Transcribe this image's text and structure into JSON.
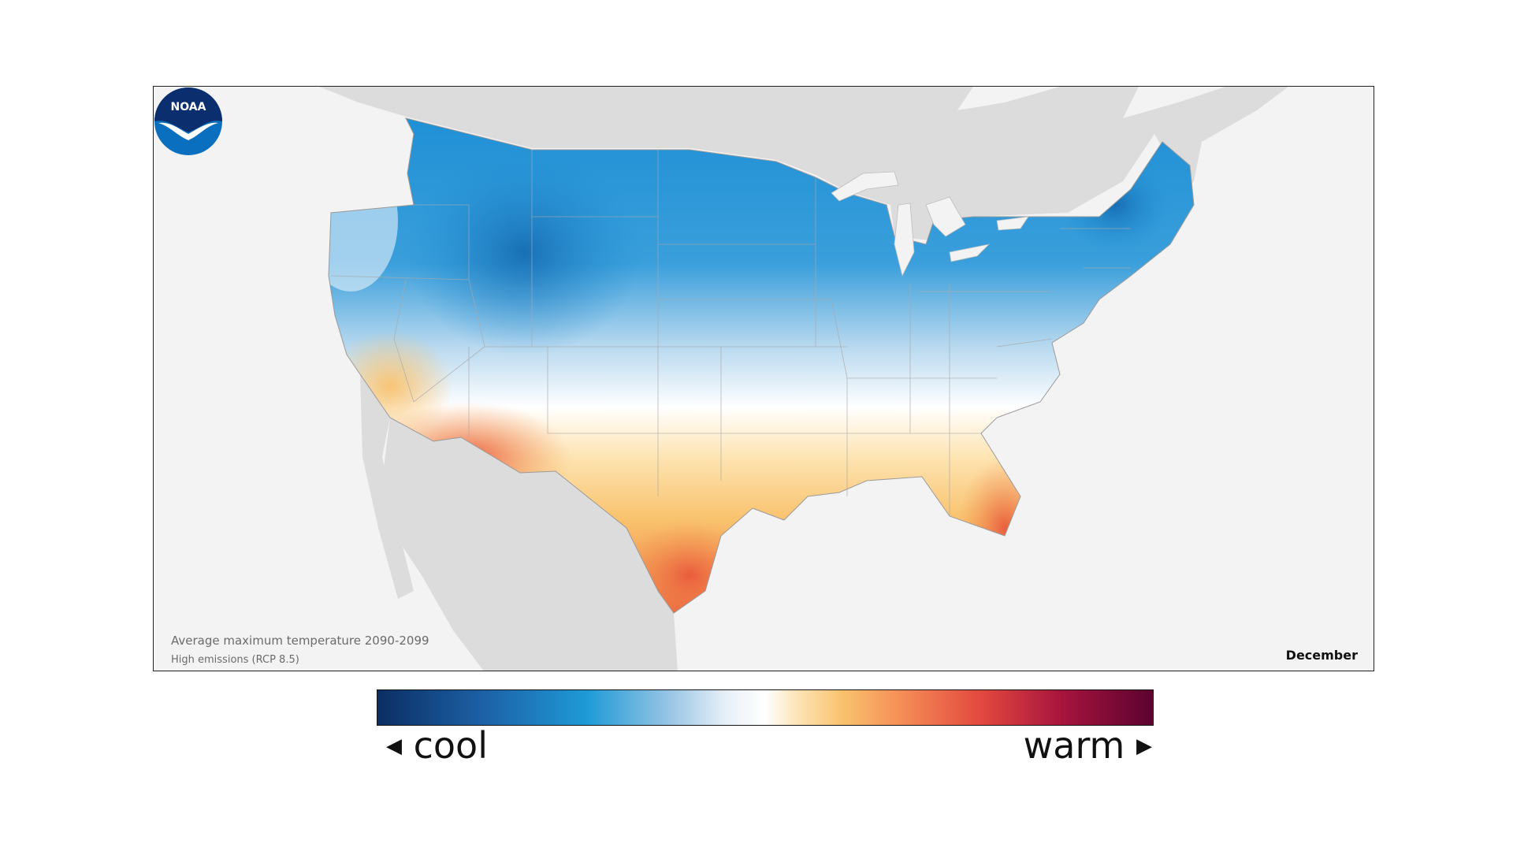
{
  "map": {
    "caption_line1": "Average maximum temperature 2090-2099",
    "caption_line2": "High emissions (RCP 8.5)",
    "month": "December",
    "logo_text": "NOAA",
    "colors": {
      "ocean": "#f3f3f3",
      "neighbor_land": "#dcdcdc",
      "cold": "#1e8fd5",
      "mild": "#ffffff",
      "warm": "#f9c26d",
      "hot": "#e85c3c"
    }
  },
  "legend": {
    "cool_label": "cool",
    "warm_label": "warm",
    "cool_arrow": "◀",
    "warm_arrow": "▶"
  }
}
